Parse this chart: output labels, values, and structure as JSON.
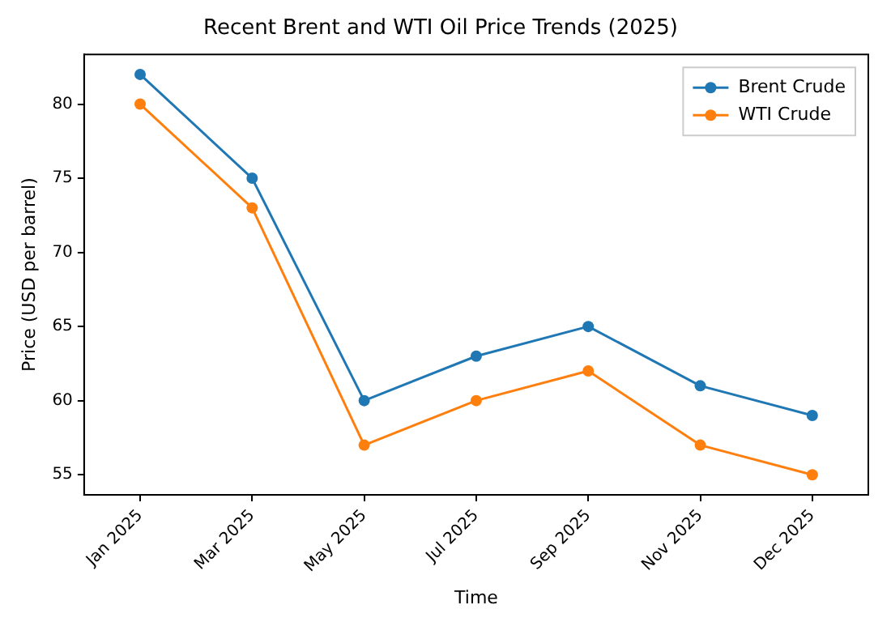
{
  "chart_data": {
    "type": "line",
    "title": "Recent Brent and WTI Oil Price Trends (2025)",
    "xlabel": "Time",
    "ylabel": "Price (USD per barrel)",
    "categories": [
      "Jan 2025",
      "Mar 2025",
      "May 2025",
      "Jul 2025",
      "Sep 2025",
      "Nov 2025",
      "Dec 2025"
    ],
    "series": [
      {
        "name": "Brent Crude",
        "color": "#1f77b4",
        "values": [
          82,
          75,
          60,
          63,
          65,
          61,
          59
        ]
      },
      {
        "name": "WTI Crude",
        "color": "#ff7f0e",
        "values": [
          80,
          73,
          57,
          60,
          62,
          57,
          55
        ]
      }
    ],
    "ylim": [
      53.65,
      83.35
    ],
    "yticks": [
      55,
      60,
      65,
      70,
      75,
      80
    ],
    "grid": false,
    "legend": "top right",
    "marker": "circle",
    "line_style": "solid"
  }
}
